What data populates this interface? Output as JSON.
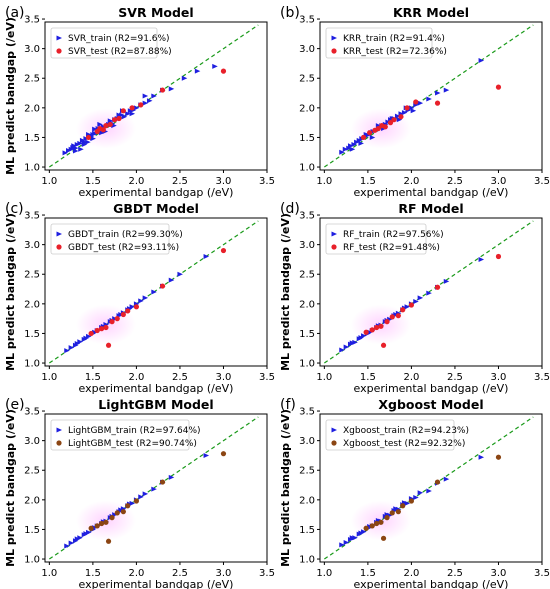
{
  "chart_data": [
    {
      "type": "scatter",
      "panel_letter": "(a)",
      "title": "SVR Model",
      "xlabel": "experimental bandgap (/eV)",
      "ylabel": "ML predict bandgap (/eV)",
      "xlim": [
        0.95,
        3.5
      ],
      "ylim": [
        0.95,
        3.45
      ],
      "xticks": [
        "1.0",
        "1.5",
        "2.0",
        "2.5",
        "3.0",
        "3.5"
      ],
      "yticks": [
        "1.0",
        "1.5",
        "2.0",
        "2.5",
        "3.0",
        "3.5"
      ],
      "test_color": "#e8202a",
      "reference_line": {
        "style": "dashed",
        "color": "#1a9a1a",
        "from": [
          1.0,
          1.0
        ],
        "to": [
          3.4,
          3.4
        ]
      },
      "series": [
        {
          "name": "SVR_train",
          "legend": "SVR_train  (R2=91.6%)",
          "marker": "triangle-right",
          "color": "#1f1fe0",
          "x": [
            1.18,
            1.22,
            1.25,
            1.27,
            1.3,
            1.32,
            1.35,
            1.38,
            1.4,
            1.42,
            1.45,
            1.48,
            1.5,
            1.52,
            1.55,
            1.58,
            1.6,
            1.62,
            1.65,
            1.68,
            1.7,
            1.72,
            1.75,
            1.78,
            1.8,
            1.83,
            1.86,
            1.9,
            1.93,
            1.96,
            2.0,
            2.05,
            2.1,
            2.15,
            2.2,
            2.3,
            2.4,
            2.55,
            2.7,
            2.9,
            1.28,
            1.36,
            1.44,
            1.5,
            1.56,
            1.64,
            1.74,
            1.84,
            1.95,
            1.4,
            1.52,
            1.6,
            1.7,
            1.8,
            1.3,
            1.45,
            1.58,
            2.1
          ],
          "y": [
            1.24,
            1.28,
            1.3,
            1.33,
            1.32,
            1.38,
            1.4,
            1.45,
            1.42,
            1.48,
            1.5,
            1.52,
            1.55,
            1.57,
            1.58,
            1.62,
            1.65,
            1.68,
            1.68,
            1.72,
            1.75,
            1.73,
            1.8,
            1.82,
            1.82,
            1.88,
            1.85,
            1.9,
            1.95,
            1.96,
            2.0,
            2.05,
            2.08,
            2.12,
            2.2,
            2.3,
            2.32,
            2.5,
            2.62,
            2.7,
            1.36,
            1.3,
            1.42,
            1.48,
            1.65,
            1.6,
            1.7,
            1.95,
            1.9,
            1.38,
            1.64,
            1.58,
            1.78,
            1.88,
            1.27,
            1.55,
            1.72,
            2.2
          ]
        },
        {
          "name": "SVR_test",
          "legend": "SVR_test  (R2=87.88%)",
          "marker": "circle",
          "color": "#e8202a",
          "x": [
            1.45,
            1.55,
            1.58,
            1.62,
            1.65,
            1.7,
            1.75,
            1.8,
            1.85,
            1.95,
            2.05,
            2.3,
            3.0
          ],
          "y": [
            1.5,
            1.6,
            1.65,
            1.63,
            1.7,
            1.72,
            1.8,
            1.82,
            1.95,
            2.0,
            2.05,
            2.3,
            2.62
          ]
        }
      ]
    },
    {
      "type": "scatter",
      "panel_letter": "(b)",
      "title": "KRR Model",
      "xlabel": "experimental bandgap (/eV)",
      "ylabel": "",
      "xlim": [
        0.95,
        3.5
      ],
      "ylim": [
        0.95,
        3.45
      ],
      "xticks": [
        "1.0",
        "1.5",
        "2.0",
        "2.5",
        "3.0",
        "3.5"
      ],
      "yticks": [
        "1.0",
        "1.5",
        "2.0",
        "2.5",
        "3.0",
        "3.5"
      ],
      "test_color": "#e8202a",
      "reference_line": {
        "style": "dashed",
        "color": "#1a9a1a",
        "from": [
          1.0,
          1.0
        ],
        "to": [
          3.4,
          3.4
        ]
      },
      "series": [
        {
          "name": "KRR_train",
          "legend": "KRR_train  (R2=91.4%)",
          "marker": "triangle-right",
          "color": "#1f1fe0",
          "x": [
            1.2,
            1.24,
            1.28,
            1.3,
            1.34,
            1.37,
            1.4,
            1.43,
            1.46,
            1.5,
            1.53,
            1.56,
            1.6,
            1.63,
            1.66,
            1.7,
            1.73,
            1.76,
            1.8,
            1.84,
            1.88,
            1.92,
            1.96,
            2.0,
            2.05,
            2.1,
            2.2,
            2.3,
            2.4,
            2.8,
            1.32,
            1.42,
            1.48,
            1.55,
            1.62,
            1.68,
            1.78,
            1.86,
            1.94,
            2.02
          ],
          "y": [
            1.25,
            1.3,
            1.32,
            1.36,
            1.38,
            1.42,
            1.45,
            1.48,
            1.5,
            1.54,
            1.58,
            1.6,
            1.62,
            1.66,
            1.7,
            1.72,
            1.76,
            1.8,
            1.82,
            1.86,
            1.9,
            1.92,
            1.96,
            2.0,
            2.05,
            2.08,
            2.15,
            2.25,
            2.3,
            2.8,
            1.3,
            1.4,
            1.55,
            1.5,
            1.7,
            1.65,
            1.82,
            1.8,
            2.0,
            1.95
          ]
        },
        {
          "name": "KRR_test",
          "legend": "KRR_test  (R2=72.36%)",
          "marker": "circle",
          "color": "#e8202a",
          "x": [
            1.45,
            1.52,
            1.58,
            1.62,
            1.66,
            1.7,
            1.76,
            1.8,
            1.88,
            1.95,
            2.05,
            2.3,
            3.0
          ],
          "y": [
            1.5,
            1.58,
            1.62,
            1.65,
            1.7,
            1.68,
            1.75,
            1.8,
            1.85,
            2.0,
            2.1,
            2.08,
            2.35
          ]
        }
      ]
    },
    {
      "type": "scatter",
      "panel_letter": "(c)",
      "title": "GBDT Model",
      "xlabel": "experimental bandgap (/eV)",
      "ylabel": "ML predict bandgap (/eV)",
      "xlim": [
        0.95,
        3.5
      ],
      "ylim": [
        0.95,
        3.45
      ],
      "xticks": [
        "1.0",
        "1.5",
        "2.0",
        "2.5",
        "3.0",
        "3.5"
      ],
      "yticks": [
        "1.0",
        "1.5",
        "2.0",
        "2.5",
        "3.0",
        "3.5"
      ],
      "test_color": "#e8202a",
      "reference_line": {
        "style": "dashed",
        "color": "#1a9a1a",
        "from": [
          1.0,
          1.0
        ],
        "to": [
          3.4,
          3.4
        ]
      },
      "series": [
        {
          "name": "GBDT_train",
          "legend": "GBDT_train  (R2=99.30%)",
          "marker": "triangle-right",
          "color": "#1f1fe0",
          "x": [
            1.2,
            1.25,
            1.3,
            1.35,
            1.4,
            1.45,
            1.5,
            1.55,
            1.6,
            1.65,
            1.7,
            1.75,
            1.8,
            1.85,
            1.9,
            1.95,
            2.0,
            2.05,
            2.1,
            2.2,
            2.3,
            2.4,
            2.5,
            2.8,
            1.32,
            1.42,
            1.52,
            1.62,
            1.72,
            1.82,
            1.92
          ],
          "y": [
            1.21,
            1.26,
            1.3,
            1.36,
            1.4,
            1.45,
            1.5,
            1.55,
            1.6,
            1.65,
            1.7,
            1.75,
            1.8,
            1.85,
            1.9,
            1.95,
            2.0,
            2.05,
            2.1,
            2.2,
            2.3,
            2.4,
            2.5,
            2.8,
            1.33,
            1.42,
            1.52,
            1.62,
            1.72,
            1.82,
            1.92
          ]
        },
        {
          "name": "GBDT_test",
          "legend": "GBDT_test  (R2=93.11%)",
          "marker": "circle",
          "color": "#e8202a",
          "x": [
            1.48,
            1.55,
            1.6,
            1.65,
            1.68,
            1.72,
            1.78,
            1.85,
            1.9,
            2.0,
            2.3,
            3.0
          ],
          "y": [
            1.5,
            1.55,
            1.58,
            1.6,
            1.3,
            1.7,
            1.75,
            1.82,
            1.88,
            1.95,
            2.3,
            2.9
          ]
        }
      ]
    },
    {
      "type": "scatter",
      "panel_letter": "(d)",
      "title": "RF Model",
      "xlabel": "experimental bandgap (/eV)",
      "ylabel": "ML predict bandgap (/eV)",
      "xlim": [
        0.95,
        3.5
      ],
      "ylim": [
        0.95,
        3.45
      ],
      "xticks": [
        "1.0",
        "1.5",
        "2.0",
        "2.5",
        "3.0",
        "3.5"
      ],
      "yticks": [
        "1.0",
        "1.5",
        "2.0",
        "2.5",
        "3.0",
        "3.5"
      ],
      "test_color": "#e8202a",
      "reference_line": {
        "style": "dashed",
        "color": "#1a9a1a",
        "from": [
          1.0,
          1.0
        ],
        "to": [
          3.4,
          3.4
        ]
      },
      "series": [
        {
          "name": "RF_train",
          "legend": "RF_train  (R2=97.56%)",
          "marker": "triangle-right",
          "color": "#1f1fe0",
          "x": [
            1.2,
            1.25,
            1.3,
            1.35,
            1.4,
            1.45,
            1.5,
            1.55,
            1.6,
            1.65,
            1.7,
            1.75,
            1.8,
            1.85,
            1.9,
            1.95,
            2.0,
            2.05,
            2.1,
            2.2,
            2.3,
            2.4,
            2.8,
            1.32,
            1.42,
            1.52,
            1.62,
            1.72,
            1.82,
            1.92
          ],
          "y": [
            1.22,
            1.27,
            1.32,
            1.35,
            1.41,
            1.46,
            1.5,
            1.55,
            1.6,
            1.64,
            1.7,
            1.74,
            1.8,
            1.84,
            1.9,
            1.95,
            2.0,
            2.04,
            2.1,
            2.18,
            2.28,
            2.38,
            2.75,
            1.34,
            1.43,
            1.52,
            1.63,
            1.72,
            1.82,
            1.93
          ]
        },
        {
          "name": "RF_test",
          "legend": "RF_test  (R2=91.48%)",
          "marker": "circle",
          "color": "#e8202a",
          "x": [
            1.48,
            1.55,
            1.6,
            1.65,
            1.68,
            1.72,
            1.78,
            1.85,
            1.9,
            2.0,
            2.3,
            3.0
          ],
          "y": [
            1.52,
            1.56,
            1.6,
            1.62,
            1.3,
            1.7,
            1.78,
            1.8,
            1.9,
            1.98,
            2.28,
            2.8
          ]
        }
      ]
    },
    {
      "type": "scatter",
      "panel_letter": "(e)",
      "title": "LightGBM Model",
      "xlabel": "experimental bandgap (/eV)",
      "ylabel": "ML predict bandgap (/eV)",
      "xlim": [
        0.95,
        3.5
      ],
      "ylim": [
        0.95,
        3.45
      ],
      "xticks": [
        "1.0",
        "1.5",
        "2.0",
        "2.5",
        "3.0",
        "3.5"
      ],
      "yticks": [
        "1.0",
        "1.5",
        "2.0",
        "2.5",
        "3.0",
        "3.5"
      ],
      "test_color": "#8b4513",
      "reference_line": {
        "style": "dashed",
        "color": "#1a9a1a",
        "from": [
          1.0,
          1.0
        ],
        "to": [
          3.4,
          3.4
        ]
      },
      "series": [
        {
          "name": "LightGBM_train",
          "legend": "LightGBM_train  (R2=97.64%)",
          "marker": "triangle-right",
          "color": "#1f1fe0",
          "x": [
            1.2,
            1.25,
            1.3,
            1.35,
            1.4,
            1.45,
            1.5,
            1.55,
            1.6,
            1.65,
            1.7,
            1.75,
            1.8,
            1.85,
            1.9,
            1.95,
            2.0,
            2.05,
            2.1,
            2.2,
            2.3,
            2.4,
            2.8,
            1.32,
            1.42,
            1.52,
            1.62,
            1.72,
            1.82,
            1.92
          ],
          "y": [
            1.22,
            1.27,
            1.31,
            1.36,
            1.41,
            1.45,
            1.5,
            1.56,
            1.6,
            1.64,
            1.7,
            1.75,
            1.8,
            1.85,
            1.9,
            1.94,
            2.0,
            2.05,
            2.1,
            2.18,
            2.3,
            2.38,
            2.75,
            1.34,
            1.43,
            1.53,
            1.63,
            1.72,
            1.83,
            1.93
          ]
        },
        {
          "name": "LightGBM_test",
          "legend": "LightGBM_test  (R2=90.74%)",
          "marker": "circle",
          "color": "#8b4513",
          "x": [
            1.48,
            1.55,
            1.6,
            1.65,
            1.68,
            1.72,
            1.78,
            1.85,
            1.9,
            2.0,
            2.3,
            3.0
          ],
          "y": [
            1.52,
            1.56,
            1.6,
            1.62,
            1.3,
            1.7,
            1.78,
            1.8,
            1.9,
            1.98,
            2.3,
            2.78
          ]
        }
      ]
    },
    {
      "type": "scatter",
      "panel_letter": "(f)",
      "title": "Xgboost Model",
      "xlabel": "experimental bandgap (/eV)",
      "ylabel": "ML predict bandgap (/eV)",
      "xlim": [
        0.95,
        3.5
      ],
      "ylim": [
        0.95,
        3.45
      ],
      "xticks": [
        "1.0",
        "1.5",
        "2.0",
        "2.5",
        "3.0",
        "3.5"
      ],
      "yticks": [
        "1.0",
        "1.5",
        "2.0",
        "2.5",
        "3.0",
        "3.5"
      ],
      "test_color": "#8b4513",
      "reference_line": {
        "style": "dashed",
        "color": "#1a9a1a",
        "from": [
          1.0,
          1.0
        ],
        "to": [
          3.4,
          3.4
        ]
      },
      "series": [
        {
          "name": "Xgboost_train",
          "legend": "Xgboost_train  (R2=94.23%)",
          "marker": "triangle-right",
          "color": "#1f1fe0",
          "x": [
            1.2,
            1.25,
            1.3,
            1.35,
            1.4,
            1.45,
            1.5,
            1.55,
            1.6,
            1.65,
            1.7,
            1.75,
            1.8,
            1.85,
            1.9,
            1.95,
            2.0,
            2.05,
            2.1,
            2.2,
            2.3,
            2.4,
            2.8,
            1.32,
            1.42,
            1.52,
            1.62,
            1.72,
            1.82,
            1.92
          ],
          "y": [
            1.24,
            1.28,
            1.33,
            1.36,
            1.42,
            1.46,
            1.52,
            1.56,
            1.62,
            1.64,
            1.72,
            1.74,
            1.82,
            1.84,
            1.92,
            1.94,
            2.02,
            2.04,
            2.12,
            2.15,
            2.28,
            2.35,
            2.72,
            1.36,
            1.44,
            1.55,
            1.65,
            1.75,
            1.85,
            1.95
          ]
        },
        {
          "name": "Xgboost_test",
          "legend": "Xgboost_test  (R2=92.32%)",
          "marker": "circle",
          "color": "#8b4513",
          "x": [
            1.48,
            1.55,
            1.6,
            1.65,
            1.68,
            1.72,
            1.78,
            1.85,
            1.9,
            2.0,
            2.3,
            3.0
          ],
          "y": [
            1.52,
            1.56,
            1.6,
            1.62,
            1.35,
            1.7,
            1.78,
            1.8,
            1.9,
            1.98,
            2.3,
            2.72
          ]
        }
      ]
    }
  ]
}
